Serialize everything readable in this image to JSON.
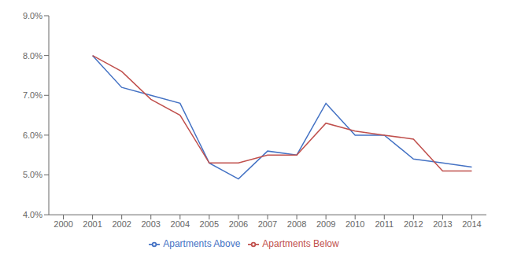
{
  "chart_data": {
    "type": "line",
    "x": [
      2000,
      2001,
      2002,
      2003,
      2004,
      2005,
      2006,
      2007,
      2008,
      2009,
      2010,
      2011,
      2012,
      2013,
      2014
    ],
    "series": [
      {
        "name": "Apartments Above",
        "color": "#4472C4",
        "values": [
          null,
          0.08,
          0.072,
          0.07,
          0.068,
          0.053,
          0.049,
          0.056,
          0.055,
          0.068,
          0.06,
          0.06,
          0.054,
          0.053,
          0.052
        ]
      },
      {
        "name": "Apartments Below",
        "color": "#C0504D",
        "values": [
          null,
          0.08,
          0.076,
          0.069,
          0.065,
          0.053,
          0.053,
          0.055,
          0.055,
          0.063,
          0.061,
          0.06,
          0.059,
          0.051,
          0.051
        ]
      }
    ],
    "xlim": [
      1999.5,
      2014.5
    ],
    "xticks": [
      2000,
      2001,
      2002,
      2003,
      2004,
      2005,
      2006,
      2007,
      2008,
      2009,
      2010,
      2011,
      2012,
      2013,
      2014
    ],
    "ylim": [
      0.04,
      0.09
    ],
    "yticks": [
      {
        "value": 0.04,
        "label": "4.0%"
      },
      {
        "value": 0.05,
        "label": "5.0%"
      },
      {
        "value": 0.06,
        "label": "6.0%"
      },
      {
        "value": 0.07,
        "label": "7.0%"
      },
      {
        "value": 0.08,
        "label": "8.0%"
      },
      {
        "value": 0.09,
        "label": "9.0%"
      }
    ],
    "grid": false,
    "legend": "bottom"
  }
}
